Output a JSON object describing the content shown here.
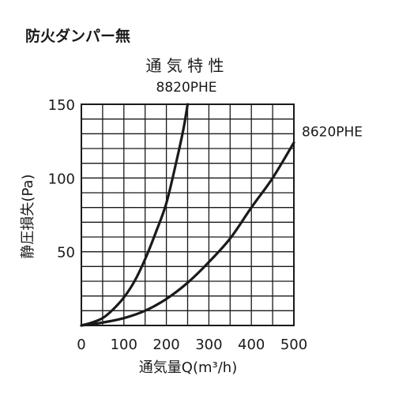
{
  "header": {
    "heading": "防火ダンパー無"
  },
  "chart_data": {
    "type": "line",
    "title": "通 気 特 性",
    "xlabel": "通気量Q(m³/h)",
    "ylabel": "静圧損失(Pa)",
    "xlim": [
      0,
      500
    ],
    "ylim": [
      0,
      150
    ],
    "xticks": [
      0,
      100,
      200,
      300,
      400,
      500
    ],
    "yticks": [
      50,
      100,
      150
    ],
    "xtick_labels": [
      "0",
      "100",
      "200",
      "300",
      "400",
      "500"
    ],
    "ytick_labels": [
      "50",
      "100",
      "150"
    ],
    "x_minor_step": 50,
    "y_minor_step": 10,
    "grid": true,
    "series": [
      {
        "name": "8820PHE",
        "points": [
          [
            0,
            0
          ],
          [
            25,
            2
          ],
          [
            50,
            5
          ],
          [
            75,
            11
          ],
          [
            100,
            19
          ],
          [
            125,
            30
          ],
          [
            150,
            45
          ],
          [
            175,
            63
          ],
          [
            200,
            83
          ],
          [
            225,
            113
          ],
          [
            240,
            133
          ],
          [
            250,
            150
          ]
        ]
      },
      {
        "name": "8620PHE",
        "points": [
          [
            0,
            0
          ],
          [
            50,
            2
          ],
          [
            100,
            5
          ],
          [
            150,
            10
          ],
          [
            200,
            18
          ],
          [
            250,
            29
          ],
          [
            300,
            43
          ],
          [
            350,
            59
          ],
          [
            400,
            80
          ],
          [
            450,
            100
          ],
          [
            500,
            124
          ]
        ]
      }
    ],
    "colors": {
      "line": "#1a1a1a",
      "grid": "#1a1a1a"
    }
  }
}
